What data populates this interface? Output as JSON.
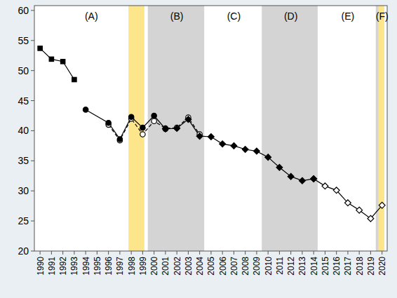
{
  "chart_data": {
    "type": "line",
    "xlim": [
      1989.5,
      2020.45
    ],
    "xticks": [
      1990,
      1991,
      1992,
      1993,
      1994,
      1995,
      1996,
      1997,
      1998,
      1999,
      2000,
      2001,
      2002,
      2003,
      2004,
      2005,
      2006,
      2007,
      2008,
      2009,
      2010,
      2011,
      2012,
      2013,
      2014,
      2015,
      2016,
      2017,
      2018,
      2019,
      2020
    ],
    "ylim": [
      20,
      60.8
    ],
    "yticks": [
      20,
      25,
      30,
      35,
      40,
      45,
      50,
      55,
      60
    ],
    "grid": false,
    "bands": [
      {
        "from": 1997.75,
        "to": 1999.15,
        "color": "#fde58c"
      },
      {
        "from": 1999.45,
        "to": 2004.4,
        "color": "#d4d4d4"
      },
      {
        "from": 2009.45,
        "to": 2014.35,
        "color": "#d4d4d4"
      },
      {
        "from": 2019.45,
        "to": 2019.7,
        "color": "#d4d4d4"
      },
      {
        "from": 2019.7,
        "to": 2020.2,
        "color": "#fde58c"
      }
    ],
    "annotations": [
      {
        "text": "(A)",
        "x": 1994.5
      },
      {
        "text": "(B)",
        "x": 2002
      },
      {
        "text": "(C)",
        "x": 2007
      },
      {
        "text": "(D)",
        "x": 2012
      },
      {
        "text": "(E)",
        "x": 2017
      },
      {
        "text": "(F)",
        "x": 2020
      }
    ],
    "series": [
      {
        "color": "#000000",
        "marker": "square",
        "line_style": "solid",
        "x": [
          1990,
          1991,
          1992,
          1993
        ],
        "values": [
          53.7,
          51.9,
          51.5,
          48.5
        ]
      },
      {
        "color": "#000000",
        "marker": "circle-open",
        "line_style": "dashed",
        "x": [
          1996,
          1997,
          1998,
          1999,
          2000,
          2001,
          2002,
          2003,
          2004
        ],
        "values": [
          41.0,
          38.4,
          42.0,
          39.4,
          41.6,
          40.4,
          40.5,
          42.2,
          39.4
        ]
      },
      {
        "color": "#000000",
        "marker": "diamond-open",
        "line_style": "solid",
        "x": [
          2014,
          2015,
          2016,
          2017,
          2018,
          2019,
          2020
        ],
        "values": [
          32.0,
          30.8,
          30.1,
          28.0,
          26.8,
          25.4,
          27.6
        ]
      },
      {
        "color": "#000000",
        "marker": "circle",
        "line_style": "solid",
        "x": [
          1994,
          1996,
          1997,
          1998,
          1999,
          2000,
          2001
        ],
        "values": [
          43.5,
          41.3,
          38.6,
          42.3,
          40.5,
          42.5,
          40.3
        ]
      },
      {
        "color": "#000000",
        "marker": "diamond",
        "line_style": "solid",
        "x": [
          2001,
          2002,
          2003,
          2004,
          2005,
          2006,
          2007,
          2008,
          2009,
          2010,
          2011,
          2012,
          2013,
          2014
        ],
        "values": [
          40.3,
          40.4,
          41.9,
          39.1,
          39.0,
          37.8,
          37.5,
          36.9,
          36.6,
          35.6,
          33.9,
          32.4,
          31.7,
          32.0
        ]
      }
    ]
  }
}
